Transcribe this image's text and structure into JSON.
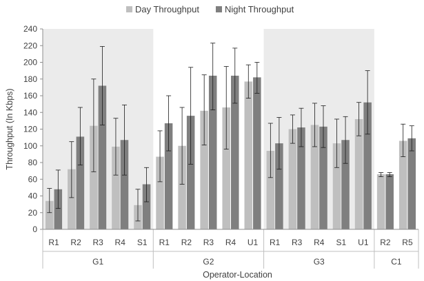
{
  "chart_data": {
    "type": "bar",
    "xlabel": "Operator-Location",
    "ylabel": "Throughput (In Kbps)",
    "ylim": [
      0,
      240
    ],
    "yticks": [
      0,
      20,
      40,
      60,
      80,
      100,
      120,
      140,
      160,
      180,
      200,
      220,
      240
    ],
    "legend_position": "top-center",
    "error_bars": true,
    "grid": false,
    "group_shading": true,
    "series": [
      {
        "name": "Day Throughput",
        "color": "#BFBFBF"
      },
      {
        "name": "Night Throughput",
        "color": "#7F7F7F"
      }
    ],
    "groups": [
      {
        "name": "G1",
        "shaded": true,
        "locations": [
          {
            "label": "R1",
            "day": 34,
            "night": 48,
            "day_err": [
              20,
              49
            ],
            "night_err": [
              25,
              71
            ]
          },
          {
            "label": "R2",
            "day": 72,
            "night": 111,
            "day_err": [
              38,
              105
            ],
            "night_err": [
              77,
              146
            ]
          },
          {
            "label": "R3",
            "day": 124,
            "night": 172,
            "day_err": [
              69,
              180
            ],
            "night_err": [
              125,
              219
            ]
          },
          {
            "label": "R4",
            "day": 99,
            "night": 107,
            "day_err": [
              65,
              133
            ],
            "night_err": [
              65,
              149
            ]
          },
          {
            "label": "S1",
            "day": 29,
            "night": 54,
            "day_err": [
              10,
              48
            ],
            "night_err": [
              33,
              74
            ]
          }
        ]
      },
      {
        "name": "G2",
        "shaded": false,
        "locations": [
          {
            "label": "R1",
            "day": 87,
            "night": 127,
            "day_err": [
              57,
              118
            ],
            "night_err": [
              94,
              160
            ]
          },
          {
            "label": "R2",
            "day": 100,
            "night": 136,
            "day_err": [
              54,
              146
            ],
            "night_err": [
              78,
              194
            ]
          },
          {
            "label": "R3",
            "day": 142,
            "night": 184,
            "day_err": [
              101,
              185
            ],
            "night_err": [
              143,
              223
            ]
          },
          {
            "label": "R4",
            "day": 146,
            "night": 184,
            "day_err": [
              96,
              195
            ],
            "night_err": [
              151,
              217
            ]
          },
          {
            "label": "U1",
            "day": 177,
            "night": 182,
            "day_err": [
              157,
              197
            ],
            "night_err": [
              163,
              200
            ]
          }
        ]
      },
      {
        "name": "G3",
        "shaded": true,
        "locations": [
          {
            "label": "R1",
            "day": 94,
            "night": 103,
            "day_err": [
              62,
              127
            ],
            "night_err": [
              72,
              134
            ]
          },
          {
            "label": "R3",
            "day": 120,
            "night": 122,
            "day_err": [
              103,
              137
            ],
            "night_err": [
              99,
              145
            ]
          },
          {
            "label": "R4",
            "day": 125,
            "night": 123,
            "day_err": [
              99,
              151
            ],
            "night_err": [
              98,
              148
            ]
          },
          {
            "label": "S1",
            "day": 103,
            "night": 107,
            "day_err": [
              74,
              132
            ],
            "night_err": [
              79,
              135
            ]
          },
          {
            "label": "U1",
            "day": 132,
            "night": 152,
            "day_err": [
              112,
              152
            ],
            "night_err": [
              114,
              190
            ]
          }
        ]
      },
      {
        "name": "C1",
        "shaded": false,
        "locations": [
          {
            "label": "R2",
            "day": 66,
            "night": 66,
            "day_err": [
              63,
              68
            ],
            "night_err": [
              63,
              68
            ]
          },
          {
            "label": "R5",
            "day": 106,
            "night": 109,
            "day_err": [
              87,
              126
            ],
            "night_err": [
              94,
              124
            ]
          }
        ]
      }
    ]
  }
}
